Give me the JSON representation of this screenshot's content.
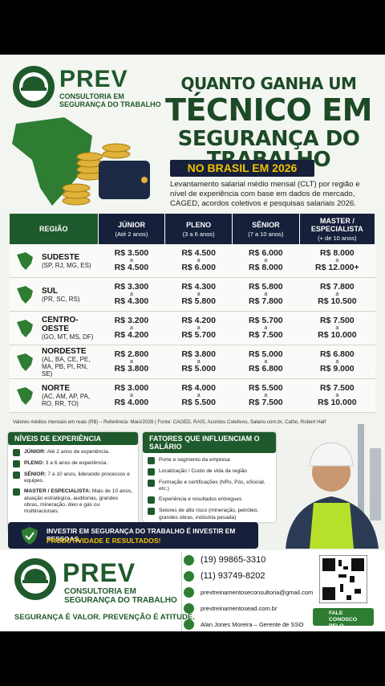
{
  "header": {
    "logo_name": "PREV",
    "logo_sub": [
      "CONSULTORIA EM",
      "SEGURANÇA DO TRABALHO"
    ],
    "title": [
      "QUANTO GANHA UM",
      "TÉCNICO EM",
      "SEGURANÇA DO TRABALHO"
    ],
    "badge": "NO BRASIL EM 2026",
    "description": "Levantamento salarial médio mensal (CLT) por região e nível de experiência com base em dados de mercado, CAGED, acordos coletivos e pesquisas salariais 2026."
  },
  "table": {
    "headers": [
      {
        "label": "REGIÃO"
      },
      {
        "label": "JÚNIOR",
        "sub": "(Até 2 anos)"
      },
      {
        "label": "PLENO",
        "sub": "(3 a 6 anos)"
      },
      {
        "label": "SÊNIOR",
        "sub": "(7 a 10 anos)"
      },
      {
        "label": "MASTER / ESPECIALISTA",
        "sub": "(+ de 10 anos)"
      }
    ],
    "range_word": "a",
    "rows": [
      {
        "region": "SUDESTE",
        "states": "(SP, RJ, MG, ES)",
        "cells": [
          [
            "R$ 3.500",
            "R$ 4.500"
          ],
          [
            "R$ 4.500",
            "R$ 6.000"
          ],
          [
            "R$ 6.000",
            "R$ 8.000"
          ],
          [
            "R$ 8.000",
            "R$ 12.000+"
          ]
        ]
      },
      {
        "region": "SUL",
        "states": "(PR, SC, RS)",
        "cells": [
          [
            "R$ 3.300",
            "R$ 4.300"
          ],
          [
            "R$ 4.300",
            "R$ 5.800"
          ],
          [
            "R$ 5.800",
            "R$ 7.800"
          ],
          [
            "R$ 7.800",
            "R$ 10.500"
          ]
        ]
      },
      {
        "region": "CENTRO-OESTE",
        "states": "(GO, MT, MS, DF)",
        "cells": [
          [
            "R$ 3.200",
            "R$ 4.200"
          ],
          [
            "R$ 4.200",
            "R$ 5.700"
          ],
          [
            "R$ 5.700",
            "R$ 7.500"
          ],
          [
            "R$ 7.500",
            "R$ 10.000"
          ]
        ]
      },
      {
        "region": "NORDESTE",
        "states": "(AL, BA, CE, PE, MA, PB, PI, RN, SE)",
        "cells": [
          [
            "R$ 2.800",
            "R$ 3.800"
          ],
          [
            "R$ 3.800",
            "R$ 5.000"
          ],
          [
            "R$ 5.000",
            "R$ 6.800"
          ],
          [
            "R$ 6.800",
            "R$ 9.000"
          ]
        ]
      },
      {
        "region": "NORTE",
        "states": "(AC, AM, AP, PA, RO, RR, TO)",
        "cells": [
          [
            "R$ 3.000",
            "R$ 4.000"
          ],
          [
            "R$ 4.000",
            "R$ 5.500"
          ],
          [
            "R$ 5.500",
            "R$ 7.500"
          ],
          [
            "R$ 7.500",
            "R$ 10.000"
          ]
        ]
      }
    ],
    "footnote": "Valores médios mensais em reais (R$) – Referência: Maio/2026  |  Fonte: CAGED, RAIS, Acordos Coletivos, Salario.com.br, Catho, Robert Half"
  },
  "levels": {
    "title": "NÍVEIS DE EXPERIÊNCIA",
    "items": [
      {
        "name": "JÚNIOR:",
        "text": "Até 2 anos de experiência."
      },
      {
        "name": "PLENO:",
        "text": "3 a 6 anos de experiência."
      },
      {
        "name": "SÊNIOR:",
        "text": "7 a 10 anos, liderando processos e equipes."
      },
      {
        "name": "MASTER / ESPECIALISTA:",
        "text": "Mais de 10 anos, atuação estratégica, auditorias, grandes obras, mineração, óleo e gás ou multinacionais."
      }
    ]
  },
  "factors": {
    "title": "FATORES QUE INFLUENCIAM O SALÁRIO",
    "items": [
      "Porte e segmento da empresa",
      "Localização / Custo de vida da região",
      "Formação e certificações (NRs, Pós, eSocial, etc.)",
      "Experiência e resultados entregues",
      "Setores de alto risco (mineração, petróleo, grandes obras, indústria pesada)"
    ]
  },
  "banner": {
    "line1": "INVESTIR EM SEGURANÇA DO TRABALHO É INVESTIR EM PESSOAS,",
    "line2": "PRODUTIVIDADE E RESULTADOS!"
  },
  "footer": {
    "logo_name": "PREV",
    "logo_sub": [
      "CONSULTORIA EM",
      "SEGURANÇA DO TRABALHO"
    ],
    "slogan": "SEGURANÇA É VALOR. PREVENÇÃO É ATITUDE.",
    "contacts": [
      "(19) 99865-3310",
      "(11) 93749-8202",
      "prevtreinamentoseconsultoria@gmail.com",
      "prevtreinamentosead.com.br",
      "Alan Jones Moreira – Gerente de SSO"
    ],
    "whatsapp": "FALE CONOSCO PELO WHATSAPP!"
  }
}
